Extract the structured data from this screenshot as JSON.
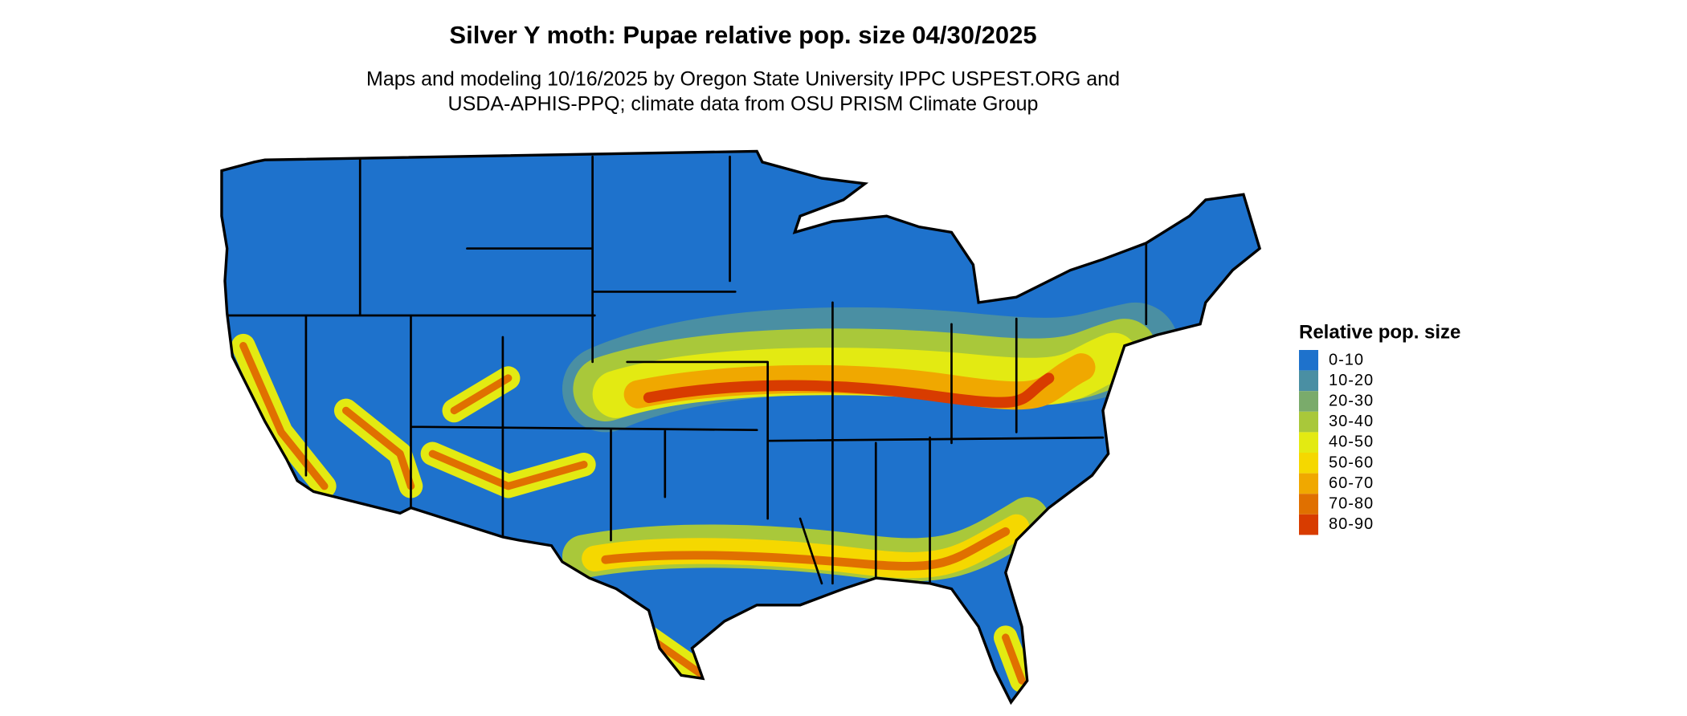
{
  "title": "Silver Y moth: Pupae relative pop. size 04/30/2025",
  "subtitle": [
    "Maps and modeling 10/16/2025 by Oregon State University IPPC USPEST.ORG and",
    "USDA-APHIS-PPQ; climate data from OSU PRISM Climate Group"
  ],
  "legend": {
    "title": "Relative pop. size",
    "items": [
      {
        "label": "0-10",
        "color": "#1e72cc"
      },
      {
        "label": "10-20",
        "color": "#4a8fa3"
      },
      {
        "label": "20-30",
        "color": "#7aab6b"
      },
      {
        "label": "30-40",
        "color": "#a9c83a"
      },
      {
        "label": "40-50",
        "color": "#e3ea12"
      },
      {
        "label": "50-60",
        "color": "#f5d800"
      },
      {
        "label": "60-70",
        "color": "#f0a800"
      },
      {
        "label": "70-80",
        "color": "#e07000"
      },
      {
        "label": "80-90",
        "color": "#d83c00"
      }
    ]
  }
}
